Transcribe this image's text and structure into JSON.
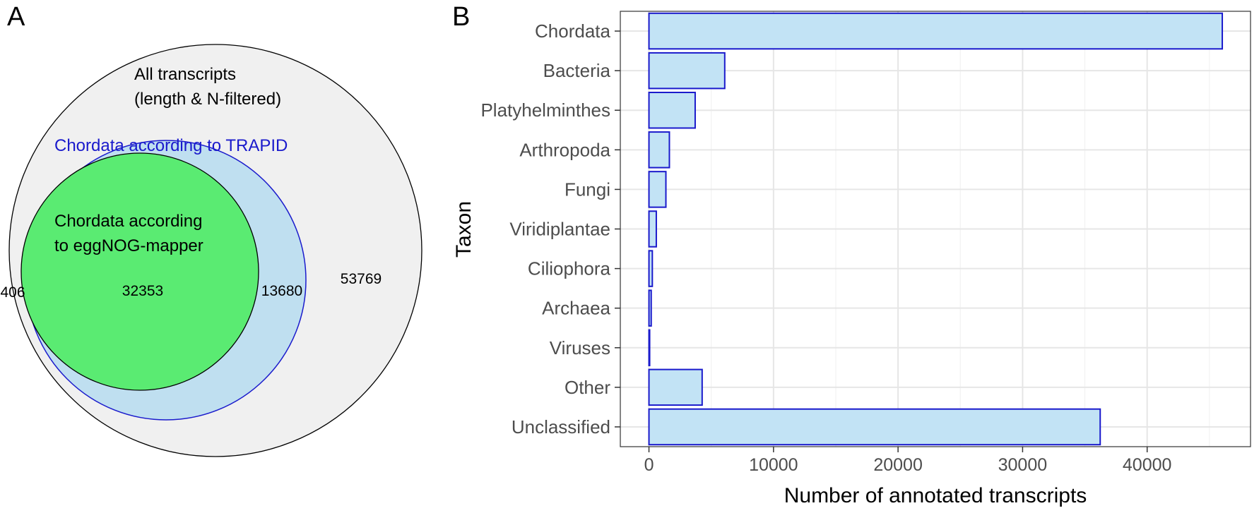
{
  "panels": {
    "a_label": "A",
    "b_label": "B"
  },
  "venn": {
    "outer_label_line1": "All transcripts",
    "outer_label_line2": "(length & N-filtered)",
    "trapid_label": "Chordata according to TRAPID",
    "eggnog_label_line1": "Chordata according",
    "eggnog_label_line2": "to eggNOG-mapper",
    "count_eggnog_only": "406",
    "count_both": "32353",
    "count_trapid_only": "13680",
    "count_neither": "53769",
    "colors": {
      "outer_fill": "#f0f0f0",
      "outer_stroke": "#000000",
      "trapid_fill": "#bfdff0",
      "trapid_stroke": "#1a1acc",
      "trapid_text": "#1a1acc",
      "eggnog_fill": "#5aeb72",
      "eggnog_stroke": "#000000"
    }
  },
  "chart_data": {
    "type": "bar",
    "orientation": "horizontal",
    "categories": [
      "Chordata",
      "Bacteria",
      "Platyhelminthes",
      "Arthropoda",
      "Fungi",
      "Viridiplantae",
      "Ciliophora",
      "Archaea",
      "Viruses",
      "Other",
      "Unclassified"
    ],
    "values": [
      46033,
      6084,
      3710,
      1640,
      1360,
      590,
      270,
      180,
      40,
      4270,
      36230
    ],
    "xlabel": "Number of annotated transcripts",
    "ylabel": "Taxon",
    "xlim": [
      -2300,
      48300
    ],
    "xticks": [
      0,
      10000,
      20000,
      30000,
      40000
    ],
    "xtick_labels": [
      "0",
      "10000",
      "20000",
      "30000",
      "40000"
    ],
    "grid": true,
    "colors": {
      "bar_fill": "#c2e3f5",
      "bar_stroke": "#1a1acc",
      "grid_major": "#e6e6e6",
      "grid_minor": "#f2f2f2",
      "panel_border": "#333333",
      "tick_text": "#4d4d4d"
    }
  }
}
